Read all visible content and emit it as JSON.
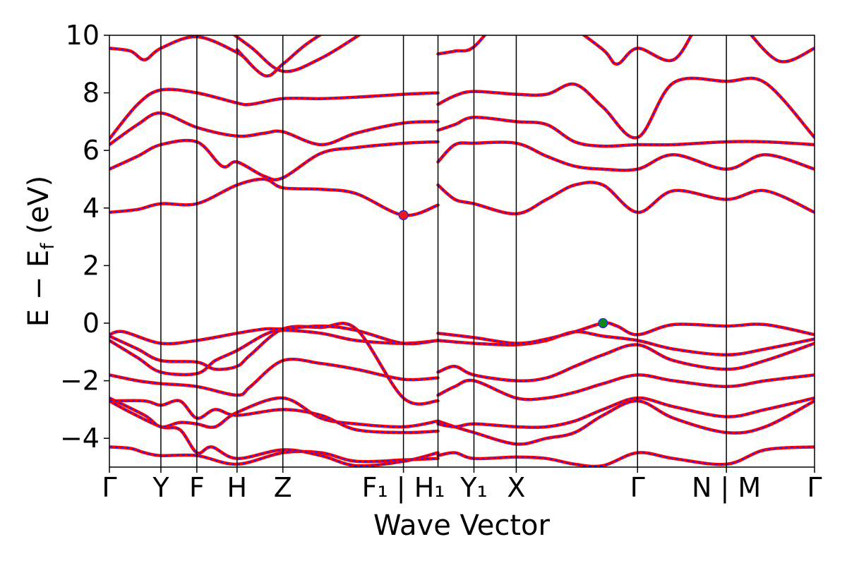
{
  "chart_data": {
    "type": "line",
    "title": "",
    "xlabel": "Wave Vector",
    "ylabel": "E − E_f (eV)",
    "ylabel_main": "E  −  E",
    "ylabel_sub": "f",
    "ylabel_tail": " (eV)",
    "xlim": [
      0,
      1
    ],
    "ylim": [
      -5,
      10
    ],
    "yticks": [
      -4,
      -2,
      0,
      2,
      4,
      6,
      8,
      10
    ],
    "ytick_labels": [
      "−4",
      "−2",
      "0",
      "2",
      "4",
      "6",
      "8",
      "10"
    ],
    "grid": false,
    "legend": "none",
    "high_symbol_points": [
      {
        "label": "Γ",
        "x": 0.0
      },
      {
        "label": "Y",
        "x": 0.073
      },
      {
        "label": "F",
        "x": 0.124
      },
      {
        "label": "H",
        "x": 0.181
      },
      {
        "label": "Z",
        "x": 0.246
      },
      {
        "label": "F₁ | H₁",
        "x": 0.417
      },
      {
        "label": "Y₁",
        "x": 0.517
      },
      {
        "label": "X",
        "x": 0.577
      },
      {
        "label": "Γ",
        "x": 0.749
      },
      {
        "label": "N | M",
        "x": 0.875
      },
      {
        "label": "Γ",
        "x": 1.0
      }
    ],
    "path_breaks": [
      0.466
    ],
    "markers": [
      {
        "name": "CBM",
        "x": 0.417,
        "y": 3.75,
        "color": "#e8191d"
      },
      {
        "name": "VBM",
        "x": 0.7,
        "y": 0.0,
        "color": "#118811"
      }
    ],
    "colors": {
      "band_solid": "#ff0000",
      "band_dashed": "#1f1fff"
    },
    "series": [
      {
        "x": [
          0.0,
          0.03,
          0.05,
          0.073,
          0.124,
          0.181,
          0.246,
          0.3,
          0.35,
          0.417,
          0.466
        ],
        "y": [
          -4.3,
          -4.35,
          -4.5,
          -4.6,
          -4.6,
          -4.9,
          -4.5,
          -4.5,
          -4.8,
          -4.75,
          -4.7
        ]
      },
      {
        "x": [
          0.0,
          0.03,
          0.073,
          0.1,
          0.124,
          0.145,
          0.181,
          0.246,
          0.3,
          0.35,
          0.417,
          0.466
        ],
        "y": [
          -2.7,
          -3.1,
          -3.6,
          -3.7,
          -4.5,
          -4.3,
          -4.7,
          -4.4,
          -4.6,
          -4.95,
          -4.8,
          -4.5
        ]
      },
      {
        "x": [
          0.0,
          0.05,
          0.073,
          0.1,
          0.124,
          0.15,
          0.181,
          0.246,
          0.3,
          0.35,
          0.417,
          0.466
        ],
        "y": [
          -2.6,
          -3.2,
          -3.6,
          -3.45,
          -3.5,
          -3.6,
          -3.1,
          -2.6,
          -3.3,
          -3.5,
          -3.6,
          -3.4
        ]
      },
      {
        "x": [
          0.0,
          0.05,
          0.073,
          0.1,
          0.124,
          0.15,
          0.181,
          0.246,
          0.3,
          0.35,
          0.417,
          0.466
        ],
        "y": [
          -2.7,
          -2.7,
          -2.85,
          -2.7,
          -3.3,
          -3.0,
          -3.2,
          -3.0,
          -3.2,
          -3.7,
          -3.8,
          -3.75
        ]
      },
      {
        "x": [
          0.0,
          0.04,
          0.073,
          0.124,
          0.181,
          0.2,
          0.246,
          0.3,
          0.35,
          0.417,
          0.466
        ],
        "y": [
          -1.8,
          -2.0,
          -2.1,
          -2.2,
          -2.5,
          -2.2,
          -1.3,
          -1.4,
          -1.6,
          -1.95,
          -1.9
        ]
      },
      {
        "x": [
          0.0,
          0.04,
          0.073,
          0.124,
          0.15,
          0.181,
          0.22,
          0.246,
          0.3,
          0.35,
          0.417,
          0.466
        ],
        "y": [
          -0.6,
          -1.2,
          -1.7,
          -1.75,
          -1.3,
          -0.95,
          -0.4,
          -0.25,
          -0.35,
          -0.6,
          -0.7,
          -0.6
        ]
      },
      {
        "x": [
          0.0,
          0.04,
          0.073,
          0.124,
          0.15,
          0.181,
          0.2,
          0.246,
          0.3,
          0.35,
          0.417,
          0.466
        ],
        "y": [
          -0.45,
          -0.9,
          -1.3,
          -1.35,
          -1.6,
          -1.5,
          -1.1,
          -0.2,
          -0.15,
          -0.2,
          -2.6,
          -2.7
        ]
      },
      {
        "x": [
          0.0,
          0.02,
          0.073,
          0.124,
          0.181,
          0.22,
          0.246,
          0.3,
          0.35,
          0.417,
          0.466
        ],
        "y": [
          -0.4,
          -0.3,
          -0.7,
          -0.6,
          -0.35,
          -0.2,
          -0.2,
          -0.1,
          -0.25,
          -0.7,
          -0.6
        ]
      },
      {
        "x": [
          0.0,
          0.04,
          0.073,
          0.124,
          0.181,
          0.22,
          0.246,
          0.3,
          0.35,
          0.417,
          0.466
        ],
        "y": [
          3.85,
          3.95,
          4.15,
          4.15,
          4.8,
          5.0,
          4.7,
          4.65,
          4.5,
          3.75,
          4.1
        ]
      },
      {
        "x": [
          0.0,
          0.04,
          0.073,
          0.124,
          0.16,
          0.181,
          0.22,
          0.246,
          0.3,
          0.35,
          0.417,
          0.466
        ],
        "y": [
          5.35,
          5.8,
          6.2,
          6.3,
          5.45,
          5.6,
          5.1,
          5.05,
          5.9,
          6.1,
          6.25,
          6.3
        ]
      },
      {
        "x": [
          0.0,
          0.04,
          0.073,
          0.124,
          0.181,
          0.22,
          0.246,
          0.3,
          0.35,
          0.417,
          0.466
        ],
        "y": [
          6.2,
          6.9,
          7.3,
          6.8,
          6.5,
          6.6,
          6.65,
          6.2,
          6.6,
          6.95,
          7.0
        ]
      },
      {
        "x": [
          0.0,
          0.04,
          0.073,
          0.124,
          0.181,
          0.2,
          0.246,
          0.3,
          0.35,
          0.417,
          0.466
        ],
        "y": [
          6.4,
          7.6,
          8.1,
          8.0,
          7.65,
          7.6,
          7.8,
          7.8,
          7.85,
          7.95,
          8.0
        ]
      },
      {
        "x": [
          0.466,
          0.49,
          0.517,
          0.577,
          0.62,
          0.66,
          0.7,
          0.749,
          0.8,
          0.875,
          0.93,
          1.0
        ],
        "y": [
          -4.6,
          -4.5,
          -4.7,
          -4.65,
          -4.7,
          -4.9,
          -4.95,
          -4.5,
          -4.7,
          -4.9,
          -4.4,
          -4.3
        ]
      },
      {
        "x": [
          0.466,
          0.49,
          0.517,
          0.577,
          0.62,
          0.66,
          0.7,
          0.749,
          0.8,
          0.875,
          0.93,
          1.0
        ],
        "y": [
          -3.4,
          -3.6,
          -3.8,
          -4.2,
          -4.0,
          -3.8,
          -3.2,
          -2.7,
          -3.3,
          -3.8,
          -3.6,
          -2.7
        ]
      },
      {
        "x": [
          0.466,
          0.49,
          0.517,
          0.577,
          0.62,
          0.66,
          0.7,
          0.749,
          0.8,
          0.875,
          0.93,
          1.0
        ],
        "y": [
          -3.5,
          -3.6,
          -3.5,
          -3.6,
          -3.6,
          -3.4,
          -3.0,
          -2.6,
          -2.9,
          -3.25,
          -3.0,
          -2.6
        ]
      },
      {
        "x": [
          0.466,
          0.49,
          0.517,
          0.577,
          0.62,
          0.66,
          0.7,
          0.749,
          0.8,
          0.875,
          0.93,
          1.0
        ],
        "y": [
          -2.5,
          -2.2,
          -2.0,
          -2.6,
          -2.6,
          -2.4,
          -2.1,
          -1.8,
          -2.0,
          -2.2,
          -2.0,
          -1.8
        ]
      },
      {
        "x": [
          0.466,
          0.49,
          0.517,
          0.577,
          0.62,
          0.66,
          0.7,
          0.749,
          0.8,
          0.875,
          0.93,
          1.0
        ],
        "y": [
          -1.7,
          -1.5,
          -1.8,
          -2.0,
          -1.9,
          -1.5,
          -1.1,
          -0.75,
          -1.3,
          -1.6,
          -1.3,
          -0.7
        ]
      },
      {
        "x": [
          0.466,
          0.517,
          0.577,
          0.62,
          0.66,
          0.7,
          0.749,
          0.8,
          0.875,
          0.93,
          1.0
        ],
        "y": [
          -0.6,
          -0.7,
          -0.75,
          -0.6,
          -0.3,
          -0.45,
          -0.6,
          -0.9,
          -1.1,
          -0.9,
          -0.55
        ]
      },
      {
        "x": [
          0.466,
          0.517,
          0.577,
          0.62,
          0.66,
          0.7,
          0.72,
          0.749,
          0.8,
          0.875,
          0.93,
          1.0
        ],
        "y": [
          -0.35,
          -0.5,
          -0.7,
          -0.55,
          -0.3,
          0.0,
          -0.1,
          -0.4,
          -0.05,
          -0.1,
          -0.05,
          -0.4
        ]
      },
      {
        "x": [
          0.466,
          0.49,
          0.517,
          0.577,
          0.62,
          0.66,
          0.7,
          0.749,
          0.8,
          0.875,
          0.93,
          1.0
        ],
        "y": [
          4.8,
          4.3,
          4.15,
          3.8,
          4.3,
          4.8,
          4.8,
          3.85,
          4.6,
          4.3,
          4.6,
          3.85
        ]
      },
      {
        "x": [
          0.466,
          0.49,
          0.517,
          0.577,
          0.62,
          0.66,
          0.7,
          0.749,
          0.8,
          0.875,
          0.93,
          1.0
        ],
        "y": [
          5.6,
          6.2,
          6.25,
          6.25,
          5.8,
          5.45,
          5.35,
          5.35,
          5.85,
          5.35,
          5.85,
          5.35
        ]
      },
      {
        "x": [
          0.466,
          0.49,
          0.517,
          0.577,
          0.62,
          0.66,
          0.7,
          0.749,
          0.8,
          0.875,
          0.93,
          1.0
        ],
        "y": [
          6.7,
          6.9,
          7.15,
          7.0,
          6.9,
          6.3,
          6.15,
          6.2,
          6.2,
          6.3,
          6.3,
          6.2
        ]
      },
      {
        "x": [
          0.466,
          0.49,
          0.517,
          0.577,
          0.62,
          0.66,
          0.7,
          0.749,
          0.8,
          0.875,
          0.93,
          1.0
        ],
        "y": [
          7.6,
          7.9,
          8.05,
          7.95,
          7.95,
          8.3,
          7.5,
          6.45,
          8.35,
          8.4,
          8.35,
          6.45
        ]
      },
      {
        "x": [
          0.466,
          0.49,
          0.517,
          0.56,
          0.6
        ],
        "y": [
          9.35,
          9.45,
          9.6,
          10.8,
          11.5
        ]
      },
      {
        "x": [
          0.64,
          0.7,
          0.72,
          0.749,
          0.8,
          0.84,
          0.87
        ],
        "y": [
          10.6,
          9.5,
          9.0,
          9.55,
          9.15,
          10.6,
          11.0
        ]
      },
      {
        "x": [
          0.9,
          0.95,
          1.0
        ],
        "y": [
          10.3,
          9.1,
          9.55
        ]
      },
      {
        "x": [
          0.0,
          0.03,
          0.05,
          0.073,
          0.124,
          0.181,
          0.2
        ],
        "y": [
          9.55,
          9.45,
          9.15,
          9.55,
          9.95,
          9.4,
          9.0
        ]
      },
      {
        "x": [
          0.181,
          0.22,
          0.246,
          0.28,
          0.33
        ],
        "y": [
          9.5,
          8.6,
          9.0,
          9.7,
          10.5
        ]
      },
      {
        "x": [
          0.15,
          0.2,
          0.246,
          0.3,
          0.36
        ],
        "y": [
          10.5,
          9.6,
          8.75,
          9.2,
          10.1
        ]
      }
    ]
  }
}
